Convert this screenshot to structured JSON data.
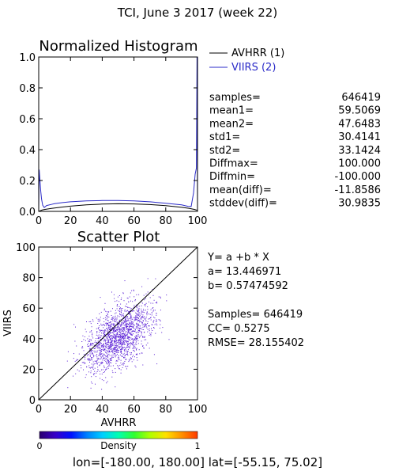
{
  "header": {
    "title": "TCI,  June 3 2017 (week 22)"
  },
  "colors": {
    "avhrr": "#000000",
    "viirs": "#2b2bc8",
    "scatter_point": "#5a1fd6",
    "frame": "#000000"
  },
  "chart_data": [
    {
      "type": "line",
      "title": "Normalized Histogram",
      "xlim": [
        0,
        100
      ],
      "ylim": [
        0,
        1.0
      ],
      "xticks": [
        0,
        20,
        40,
        60,
        80,
        100
      ],
      "yticks": [
        "0.0",
        "0.2",
        "0.4",
        "0.6",
        "0.8",
        "1.0"
      ],
      "legend": {
        "placement": "outside-top-right"
      },
      "series": [
        {
          "name": "AVHRR (1)",
          "color": "#000000",
          "x": [
            0,
            1,
            2,
            3,
            4,
            6,
            8,
            10,
            15,
            20,
            30,
            40,
            50,
            60,
            70,
            80,
            90,
            95,
            97,
            98,
            99,
            100
          ],
          "y": [
            0.0,
            0.004,
            0.008,
            0.011,
            0.013,
            0.016,
            0.019,
            0.022,
            0.028,
            0.034,
            0.042,
            0.047,
            0.049,
            0.048,
            0.044,
            0.037,
            0.026,
            0.019,
            0.015,
            0.013,
            0.01,
            0.007
          ]
        },
        {
          "name": "VIIRS (2)",
          "color": "#2b2bc8",
          "x": [
            0,
            0.3,
            0.8,
            1.3,
            1.8,
            2.5,
            3.5,
            5,
            8,
            10,
            15,
            20,
            30,
            40,
            50,
            60,
            70,
            80,
            90,
            94,
            96,
            97.5,
            98.5,
            99.3,
            99.7,
            100
          ],
          "y": [
            0.0,
            0.27,
            0.2,
            0.13,
            0.08,
            0.04,
            0.025,
            0.038,
            0.045,
            0.05,
            0.057,
            0.062,
            0.068,
            0.07,
            0.071,
            0.068,
            0.062,
            0.053,
            0.042,
            0.033,
            0.032,
            0.12,
            0.24,
            0.28,
            1.0,
            0.0
          ]
        }
      ],
      "stats": [
        {
          "label": "samples=",
          "value": "646419"
        },
        {
          "label": "mean1=",
          "value": "59.5069"
        },
        {
          "label": "mean2=",
          "value": "47.6483"
        },
        {
          "label": "std1=",
          "value": "30.4141"
        },
        {
          "label": "std2=",
          "value": "33.1424"
        },
        {
          "label": "Diffmax=",
          "value": "100.000"
        },
        {
          "label": "Diffmin=",
          "value": "-100.000"
        },
        {
          "label": "mean(diff)=",
          "value": "-11.8586"
        },
        {
          "label": "stddev(diff)=",
          "value": "30.9835"
        }
      ]
    },
    {
      "type": "scatter",
      "title": "Scatter Plot",
      "xlabel": "AVHRR",
      "ylabel": "VIIRS",
      "xlim": [
        0,
        100
      ],
      "ylim": [
        0,
        100
      ],
      "xticks": [
        0,
        20,
        40,
        60,
        80,
        100
      ],
      "yticks": [
        0,
        20,
        40,
        60,
        80,
        100
      ],
      "one_to_one_line": true,
      "cluster": {
        "x_mean": 50,
        "y_mean": 42,
        "x_std": 11,
        "y_std": 12,
        "count": 1700
      },
      "fit": {
        "equation": "Y= a +b * X",
        "a_label": "a=",
        "a_value": "13.446971",
        "b_label": "b=",
        "b_value": "0.57474592"
      },
      "stats": {
        "samples_label": "Samples=",
        "samples_value": "646419",
        "cc_label": "CC=",
        "cc_value": "0.5275",
        "rmse_label": "RMSE=",
        "rmse_value": "28.155402"
      },
      "colorbar": {
        "label": "Density",
        "min_label": "0",
        "max_label": "1",
        "colors": [
          "#2a006e",
          "#3800c8",
          "#0010ff",
          "#0080ff",
          "#00d0ff",
          "#00ffb0",
          "#30ff30",
          "#b0ff00",
          "#ffe000",
          "#ff9000",
          "#ff3a00"
        ]
      }
    }
  ],
  "footer": {
    "lon_label": "lon=",
    "lon_range": "[-180.00, 180.00]",
    "lat_label": "lat=",
    "lat_range": "[-55.15, 75.02]"
  }
}
